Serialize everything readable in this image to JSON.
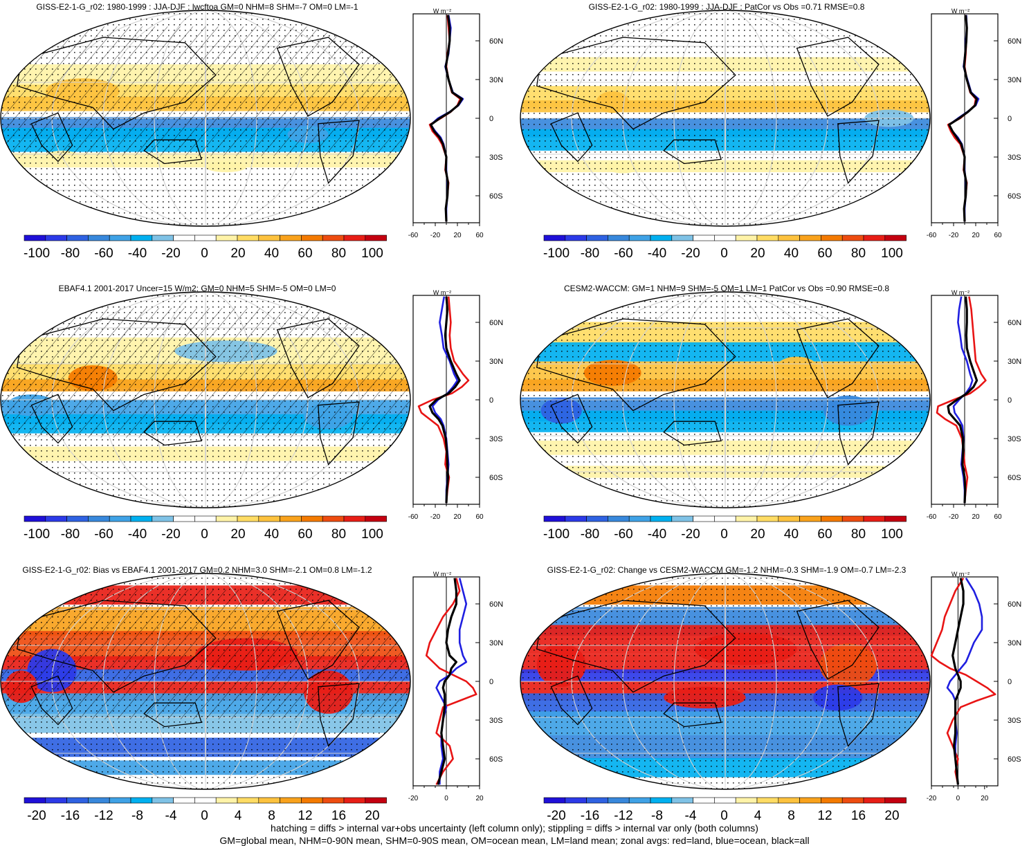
{
  "colors": {
    "scale": [
      "#1f10d8",
      "#2c3ae8",
      "#2f62e2",
      "#3888dc",
      "#3fa2e6",
      "#00b0f0",
      "#7fc2e6",
      "#ffffff",
      "#ffffff",
      "#fff3a8",
      "#ffdc64",
      "#fdc23e",
      "#f9a21c",
      "#f47a00",
      "#ee4c10",
      "#e81e16",
      "#c40010"
    ],
    "land": "#000000",
    "hatch": "#000000",
    "ocean_line": "#1f1fe0",
    "land_line": "#e81414",
    "all_line": "#000000"
  },
  "colorbar_labels_a": [
    "-100",
    "-80",
    "-60",
    "-40",
    "-20",
    "0",
    "20",
    "40",
    "60",
    "80",
    "100"
  ],
  "colorbar_labels_b": [
    "-20",
    "-16",
    "-12",
    "-8",
    "-4",
    "0",
    "4",
    "8",
    "12",
    "16",
    "20"
  ],
  "lat_labels": [
    "60N",
    "30N",
    "0",
    "30S",
    "60S"
  ],
  "zonal_unit": "W m⁻²",
  "zonal_ticks_a": [
    "-60",
    "-20",
    "20",
    "60"
  ],
  "zonal_ticks_b": [
    "-20",
    "0",
    "20"
  ],
  "panels": [
    {
      "id": "p1",
      "title": "GISS-E2-1-G_r02: 1980-1999 : JJA-DJF : lwcftoa GM=0 NHM=8 SHM=-7 OM=0 LM=-1",
      "hatched": true,
      "scale": "a"
    },
    {
      "id": "p2",
      "title": "GISS-E2-1-G_r02: 1980-1999 : JJA-DJF : PatCor vs Obs =0.71 RMSE=0.8",
      "hatched": false,
      "scale": "a"
    },
    {
      "id": "p3",
      "title": "EBAF4.1 2001-2017 Uncer=15 W/m2: GM=0 NHM=5 SHM=-5 OM=0 LM=0",
      "hatched": true,
      "scale": "a"
    },
    {
      "id": "p4",
      "title": "CESM2-WACCM: GM=1 NHM=9 SHM=-5 OM=1 LM=1 PatCor vs Obs =0.90 RMSE=0.8",
      "hatched": false,
      "scale": "a"
    },
    {
      "id": "p5",
      "title": "GISS-E2-1-G_r02: Bias vs EBAF4.1 2001-2017 GM=0.2 NHM=3.0 SHM=-2.1 OM=0.8 LM=-1.2",
      "hatched": true,
      "scale": "b"
    },
    {
      "id": "p6",
      "title": "GISS-E2-1-G_r02: Change vs CESM2-WACCM GM=-1.2 NHM=-0.3 SHM=-1.9 OM=-0.7 LM=-2.3",
      "hatched": false,
      "scale": "b"
    }
  ],
  "chart_data": [
    {
      "type": "line",
      "panel": "p1",
      "x_unit": "W m-2",
      "xlim": [
        -60,
        60
      ],
      "lat": [
        80,
        70,
        60,
        50,
        40,
        30,
        20,
        15,
        10,
        5,
        0,
        -5,
        -10,
        -15,
        -20,
        -30,
        -40,
        -50,
        -60,
        -70,
        -80
      ],
      "series": [
        {
          "name": "land",
          "values": [
            2,
            4,
            6,
            2,
            0,
            4,
            10,
            25,
            20,
            8,
            -10,
            -30,
            -25,
            -15,
            -8,
            0,
            -2,
            4,
            2,
            -1,
            0
          ]
        },
        {
          "name": "ocean",
          "values": [
            4,
            8,
            6,
            4,
            -2,
            4,
            12,
            30,
            22,
            6,
            -15,
            -28,
            -20,
            -10,
            -5,
            0,
            0,
            2,
            2,
            0,
            0
          ]
        },
        {
          "name": "all",
          "values": [
            3,
            6,
            6,
            3,
            -1,
            4,
            11,
            28,
            21,
            7,
            -12,
            -28,
            -22,
            -12,
            -6,
            0,
            -1,
            3,
            2,
            -1,
            0
          ]
        }
      ]
    },
    {
      "type": "line",
      "panel": "p2",
      "x_unit": "W m-2",
      "xlim": [
        -60,
        60
      ],
      "lat": [
        80,
        70,
        60,
        50,
        40,
        30,
        20,
        15,
        10,
        5,
        0,
        -5,
        -10,
        -15,
        -20,
        -30,
        -40,
        -50,
        -60,
        -70,
        -80
      ],
      "series": [
        {
          "name": "land",
          "values": [
            2,
            4,
            3,
            2,
            0,
            4,
            10,
            20,
            18,
            6,
            -8,
            -30,
            -25,
            -18,
            -8,
            0,
            -2,
            4,
            2,
            -1,
            0
          ]
        },
        {
          "name": "ocean",
          "values": [
            3,
            4,
            2,
            1,
            -2,
            5,
            12,
            25,
            20,
            5,
            -12,
            -28,
            -22,
            -12,
            -5,
            0,
            0,
            2,
            2,
            0,
            0
          ]
        },
        {
          "name": "all",
          "values": [
            2,
            4,
            3,
            1,
            -1,
            4,
            11,
            22,
            19,
            6,
            -10,
            -28,
            -22,
            -14,
            -6,
            0,
            -1,
            3,
            2,
            -1,
            0
          ]
        }
      ]
    },
    {
      "type": "line",
      "panel": "p3",
      "x_unit": "W m-2",
      "xlim": [
        -60,
        60
      ],
      "lat": [
        80,
        70,
        60,
        50,
        40,
        30,
        20,
        15,
        10,
        5,
        0,
        -5,
        -10,
        -15,
        -20,
        -30,
        -40,
        -50,
        -60,
        -70,
        -80
      ],
      "series": [
        {
          "name": "land",
          "values": [
            4,
            6,
            8,
            6,
            8,
            14,
            30,
            40,
            28,
            10,
            -25,
            -50,
            -45,
            -30,
            -15,
            -5,
            0,
            -2,
            5,
            2,
            0
          ]
        },
        {
          "name": "ocean",
          "values": [
            -4,
            -8,
            -12,
            -8,
            -5,
            6,
            14,
            20,
            12,
            2,
            -15,
            -25,
            -20,
            -10,
            -5,
            0,
            2,
            4,
            2,
            0,
            0
          ]
        },
        {
          "name": "all",
          "values": [
            0,
            2,
            0,
            -2,
            0,
            8,
            18,
            24,
            16,
            4,
            -18,
            -30,
            -25,
            -14,
            -7,
            -1,
            1,
            2,
            3,
            1,
            0
          ]
        }
      ]
    },
    {
      "type": "line",
      "panel": "p4",
      "x_unit": "W m-2",
      "xlim": [
        -60,
        60
      ],
      "lat": [
        80,
        70,
        60,
        50,
        40,
        30,
        20,
        15,
        10,
        5,
        0,
        -5,
        -10,
        -15,
        -20,
        -30,
        -40,
        -50,
        -60,
        -70,
        -80
      ],
      "series": [
        {
          "name": "land",
          "values": [
            8,
            12,
            14,
            16,
            18,
            20,
            30,
            38,
            26,
            10,
            -20,
            -48,
            -50,
            -35,
            -15,
            -5,
            -2,
            0,
            5,
            2,
            0
          ]
        },
        {
          "name": "ocean",
          "values": [
            -6,
            -10,
            -12,
            -8,
            -5,
            4,
            10,
            14,
            10,
            2,
            -10,
            -20,
            -18,
            -10,
            -4,
            -2,
            -4,
            -6,
            -2,
            0,
            0
          ]
        },
        {
          "name": "all",
          "values": [
            2,
            4,
            4,
            3,
            4,
            10,
            18,
            22,
            16,
            4,
            -14,
            -30,
            -28,
            -18,
            -8,
            -3,
            -3,
            -4,
            0,
            1,
            0
          ]
        }
      ]
    },
    {
      "type": "line",
      "panel": "p5",
      "x_unit": "W m-2",
      "xlim": [
        -20,
        20
      ],
      "lat": [
        80,
        70,
        60,
        50,
        40,
        30,
        20,
        15,
        10,
        5,
        0,
        -5,
        -10,
        -15,
        -20,
        -30,
        -40,
        -50,
        -60,
        -70,
        -80
      ],
      "series": [
        {
          "name": "land",
          "values": [
            6,
            8,
            4,
            -2,
            -6,
            -10,
            -12,
            -8,
            -4,
            4,
            12,
            16,
            18,
            8,
            -2,
            -4,
            -6,
            2,
            4,
            -2,
            -6
          ]
        },
        {
          "name": "ocean",
          "values": [
            8,
            10,
            12,
            10,
            8,
            8,
            10,
            12,
            6,
            2,
            -4,
            -6,
            -4,
            -2,
            0,
            -2,
            -3,
            -3,
            -2,
            -4,
            -4
          ]
        },
        {
          "name": "all",
          "values": [
            5,
            6,
            6,
            3,
            1,
            0,
            2,
            6,
            3,
            2,
            -1,
            -2,
            -1,
            -1,
            -1,
            -2,
            -3,
            -2,
            -1,
            -3,
            -5
          ]
        }
      ]
    },
    {
      "type": "line",
      "panel": "p6",
      "x_unit": "W m-2",
      "xlim": [
        -20,
        30
      ],
      "lat": [
        80,
        70,
        60,
        50,
        40,
        30,
        20,
        15,
        10,
        5,
        0,
        -5,
        -10,
        -15,
        -20,
        -30,
        -40,
        -50,
        -60,
        -70,
        -80
      ],
      "series": [
        {
          "name": "land",
          "values": [
            4,
            -2,
            -6,
            -10,
            -12,
            -16,
            -20,
            -14,
            -6,
            6,
            14,
            22,
            28,
            14,
            2,
            -4,
            -8,
            -4,
            0,
            -2,
            0
          ]
        },
        {
          "name": "ocean",
          "values": [
            6,
            12,
            16,
            18,
            18,
            12,
            8,
            6,
            2,
            -2,
            -6,
            -8,
            -4,
            -2,
            -2,
            -2,
            -1,
            -2,
            -2,
            -1,
            0
          ]
        },
        {
          "name": "all",
          "values": [
            2,
            4,
            4,
            2,
            0,
            -2,
            -4,
            -3,
            -2,
            0,
            2,
            2,
            0,
            -2,
            -2,
            -2,
            -2,
            -3,
            -2,
            -1,
            0
          ]
        }
      ]
    }
  ],
  "footnote_1": "hatching = diffs > internal var+obs uncertainty (left column only); stippling = diffs > internal var only (both columns)",
  "footnote_2": "GM=global mean, NHM=0-90N mean, SHM=0-90S mean, OM=ocean mean, LM=land mean; zonal avgs: red=land, blue=ocean, black=all"
}
